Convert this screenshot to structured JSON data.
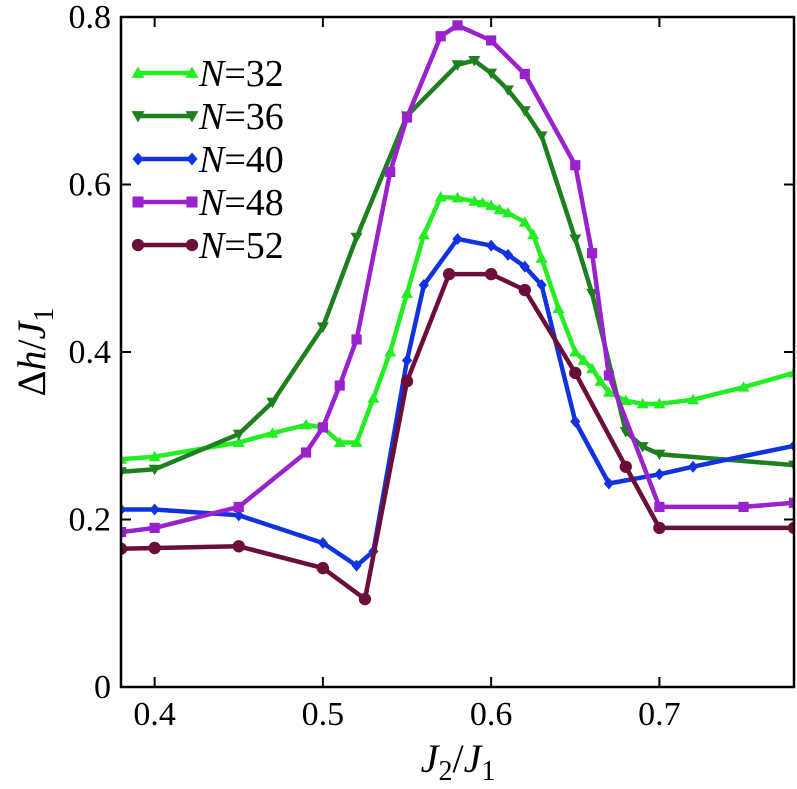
{
  "chart_data": {
    "type": "line",
    "title": "",
    "xlabel": "J2/J1",
    "ylabel": "Δh/J1",
    "xlim": [
      0.38,
      0.78
    ],
    "ylim": [
      0,
      0.8
    ],
    "xticks": [
      0.4,
      0.5,
      0.6,
      0.7
    ],
    "yticks": [
      0,
      0.2,
      0.4,
      0.6,
      0.8
    ],
    "xtick_labels": [
      "0.4",
      "0.5",
      "0.6",
      "0.7"
    ],
    "ytick_labels": [
      "0",
      "0.2",
      "0.4",
      "0.6",
      "0.8"
    ],
    "grid": false,
    "legend_position": "top-left",
    "series": [
      {
        "name": "N=32",
        "color": "#22ee22",
        "marker": "triangle-up",
        "x": [
          0.38,
          0.4,
          0.45,
          0.47,
          0.49,
          0.5,
          0.51,
          0.52,
          0.53,
          0.54,
          0.55,
          0.56,
          0.57,
          0.58,
          0.59,
          0.595,
          0.6,
          0.605,
          0.61,
          0.62,
          0.625,
          0.63,
          0.64,
          0.65,
          0.655,
          0.66,
          0.665,
          0.67,
          0.68,
          0.69,
          0.7,
          0.72,
          0.75,
          0.78
        ],
        "values": [
          0.272,
          0.275,
          0.292,
          0.303,
          0.313,
          0.31,
          0.292,
          0.292,
          0.345,
          0.4,
          0.47,
          0.54,
          0.585,
          0.584,
          0.58,
          0.578,
          0.575,
          0.57,
          0.566,
          0.555,
          0.54,
          0.512,
          0.452,
          0.4,
          0.39,
          0.38,
          0.365,
          0.352,
          0.342,
          0.338,
          0.338,
          0.343,
          0.358,
          0.375
        ]
      },
      {
        "name": "N=36",
        "color": "#1e7f1e",
        "marker": "triangle-down",
        "x": [
          0.38,
          0.4,
          0.45,
          0.47,
          0.5,
          0.52,
          0.55,
          0.58,
          0.59,
          0.6,
          0.61,
          0.62,
          0.63,
          0.65,
          0.66,
          0.68,
          0.69,
          0.7,
          0.78
        ],
        "values": [
          0.257,
          0.26,
          0.302,
          0.34,
          0.43,
          0.537,
          0.682,
          0.743,
          0.748,
          0.733,
          0.713,
          0.688,
          0.658,
          0.535,
          0.47,
          0.305,
          0.287,
          0.278,
          0.265
        ]
      },
      {
        "name": "N=40",
        "color": "#1133dd",
        "marker": "diamond",
        "x": [
          0.38,
          0.4,
          0.45,
          0.5,
          0.52,
          0.53,
          0.55,
          0.56,
          0.58,
          0.6,
          0.61,
          0.62,
          0.63,
          0.65,
          0.67,
          0.7,
          0.72,
          0.78
        ],
        "values": [
          0.212,
          0.212,
          0.205,
          0.172,
          0.145,
          0.162,
          0.39,
          0.48,
          0.535,
          0.527,
          0.516,
          0.502,
          0.48,
          0.317,
          0.243,
          0.254,
          0.263,
          0.288
        ]
      },
      {
        "name": "N=48",
        "color": "#9922cc",
        "marker": "square",
        "x": [
          0.38,
          0.4,
          0.45,
          0.49,
          0.5,
          0.51,
          0.52,
          0.54,
          0.55,
          0.57,
          0.58,
          0.6,
          0.62,
          0.65,
          0.66,
          0.67,
          0.7,
          0.75,
          0.78
        ],
        "values": [
          0.185,
          0.19,
          0.215,
          0.28,
          0.31,
          0.36,
          0.415,
          0.615,
          0.68,
          0.777,
          0.79,
          0.772,
          0.732,
          0.623,
          0.518,
          0.372,
          0.215,
          0.215,
          0.22
        ]
      },
      {
        "name": "N=52",
        "color": "#6b0e3a",
        "marker": "circle",
        "x": [
          0.38,
          0.4,
          0.45,
          0.5,
          0.525,
          0.55,
          0.575,
          0.6,
          0.62,
          0.65,
          0.68,
          0.7,
          0.78
        ],
        "values": [
          0.165,
          0.166,
          0.168,
          0.142,
          0.105,
          0.365,
          0.493,
          0.493,
          0.474,
          0.375,
          0.263,
          0.19,
          0.19
        ]
      }
    ]
  }
}
